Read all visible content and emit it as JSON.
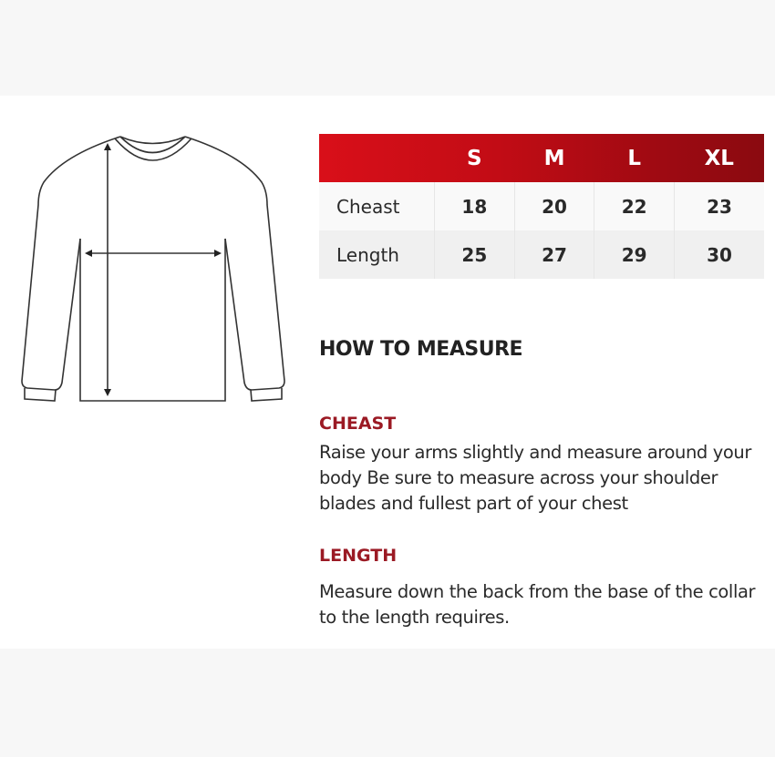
{
  "size_chart": {
    "columns": [
      "",
      "S",
      "M",
      "L",
      "XL"
    ],
    "rows": [
      {
        "label": "Cheast",
        "values": [
          "18",
          "20",
          "22",
          "23"
        ]
      },
      {
        "label": "Length",
        "values": [
          "25",
          "27",
          "29",
          "30"
        ]
      }
    ],
    "header_color": "#c70d16"
  },
  "guide": {
    "title": "HOW TO MEASURE",
    "sections": [
      {
        "heading": "CHEAST",
        "text": "Raise your arms slightly and measure around your body Be sure to measure across your shoulder blades and fullest part of your chest"
      },
      {
        "heading": "LENGTH",
        "text": "Measure down the back from the base of the collar to the length requires."
      }
    ],
    "accent_color": "#9b1a24"
  },
  "illustration": {
    "icon": "sweatshirt-measurement-diagram"
  }
}
